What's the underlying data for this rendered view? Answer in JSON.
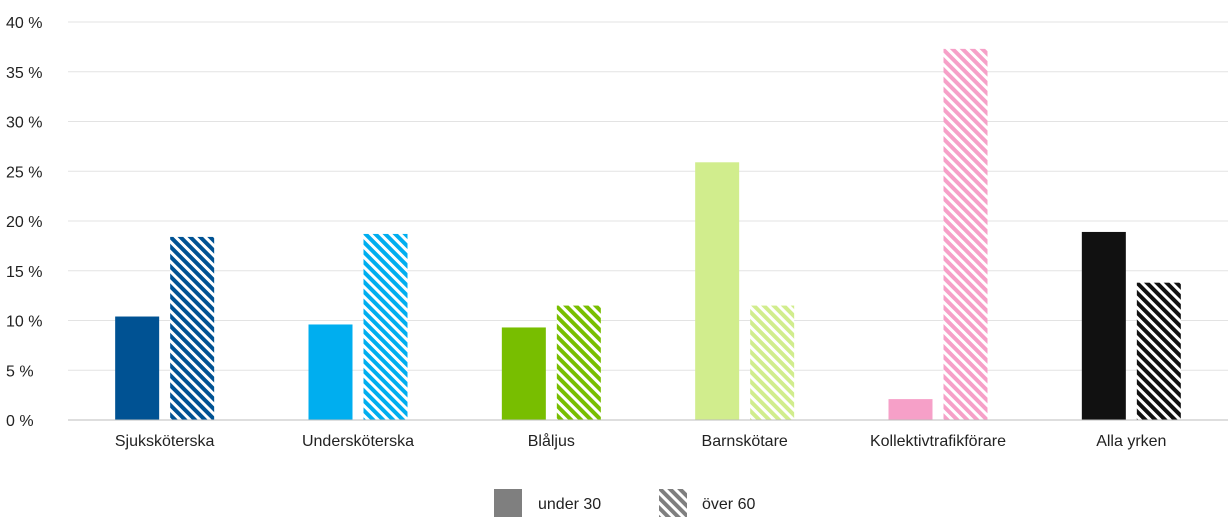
{
  "chart_data": {
    "type": "bar",
    "categories": [
      "Sjuksköterska",
      "Undersköterska",
      "Blåljus",
      "Barnskötare",
      "Kollektivtrafikförare",
      "Alla yrken"
    ],
    "series": [
      {
        "name": "under 30",
        "values": [
          10.4,
          9.6,
          9.3,
          25.9,
          2.1,
          18.9
        ]
      },
      {
        "name": "över 60",
        "values": [
          18.4,
          18.7,
          11.5,
          11.5,
          37.3,
          13.8
        ]
      }
    ],
    "category_colors": [
      "#005293",
      "#00aeef",
      "#78be00",
      "#d1ed8d",
      "#f6a0c8",
      "#111111"
    ],
    "legend_swatch_color": "#7f7f7f",
    "ylim": [
      0,
      40
    ],
    "y_ticks": [
      0,
      5,
      10,
      15,
      20,
      25,
      30,
      35,
      40
    ],
    "y_tick_labels": [
      "0 %",
      "5 %",
      "10 %",
      "15 %",
      "20 %",
      "25 %",
      "30 %",
      "35 %",
      "40 %"
    ],
    "grid": true,
    "legend_position": "bottom-center",
    "pattern_second_series": "diagonal-stripes"
  }
}
